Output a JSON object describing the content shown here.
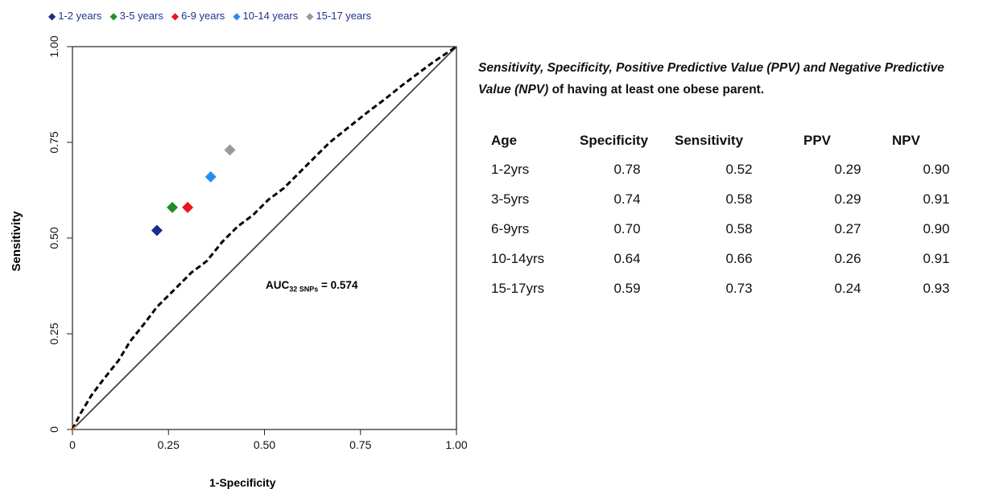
{
  "chart_data": {
    "type": "scatter",
    "xlabel": "1-Specificity",
    "ylabel": "Sensitivity",
    "xlim": [
      0,
      1
    ],
    "ylim": [
      0,
      1
    ],
    "xticks": [
      "0",
      "0.25",
      "0.50",
      "0.75",
      "1.00"
    ],
    "yticks": [
      "0",
      "0.25",
      "0.50",
      "0.75",
      "1.00"
    ],
    "grid": false,
    "legend_position": "top",
    "series": [
      {
        "name": "1-2 years",
        "color": "#1c2a8a",
        "marker": "diamond",
        "x": 0.22,
        "y": 0.52
      },
      {
        "name": "3-5 years",
        "color": "#1f8f2a",
        "marker": "diamond",
        "x": 0.26,
        "y": 0.58
      },
      {
        "name": "6-9 years",
        "color": "#e8141e",
        "marker": "diamond",
        "x": 0.3,
        "y": 0.58
      },
      {
        "name": "10-14 years",
        "color": "#2a8cf0",
        "marker": "diamond",
        "x": 0.36,
        "y": 0.66
      },
      {
        "name": "15-17 years",
        "color": "#9a9a9a",
        "marker": "diamond",
        "x": 0.41,
        "y": 0.73
      }
    ],
    "roc_curve": {
      "style": "dashed",
      "color": "#000000",
      "points": [
        [
          0,
          0
        ],
        [
          0.02,
          0.04
        ],
        [
          0.05,
          0.09
        ],
        [
          0.08,
          0.13
        ],
        [
          0.12,
          0.18
        ],
        [
          0.15,
          0.23
        ],
        [
          0.19,
          0.28
        ],
        [
          0.22,
          0.32
        ],
        [
          0.25,
          0.35
        ],
        [
          0.28,
          0.38
        ],
        [
          0.31,
          0.41
        ],
        [
          0.35,
          0.44
        ],
        [
          0.39,
          0.49
        ],
        [
          0.43,
          0.53
        ],
        [
          0.47,
          0.56
        ],
        [
          0.51,
          0.6
        ],
        [
          0.55,
          0.63
        ],
        [
          0.59,
          0.67
        ],
        [
          0.63,
          0.71
        ],
        [
          0.67,
          0.75
        ],
        [
          0.72,
          0.79
        ],
        [
          0.77,
          0.83
        ],
        [
          0.81,
          0.86
        ],
        [
          0.86,
          0.9
        ],
        [
          0.9,
          0.93
        ],
        [
          0.94,
          0.96
        ],
        [
          0.97,
          0.98
        ],
        [
          1,
          1
        ]
      ]
    },
    "reference_line": {
      "color": "#444444",
      "points": [
        [
          0,
          0
        ],
        [
          1,
          1
        ]
      ]
    },
    "annotation": {
      "prefix": "AUC",
      "subscript": "32 SNPs",
      "suffix": " = 0.574"
    }
  },
  "caption": {
    "italic_part": "Sensitivity, Specificity, Positive Predictive Value (PPV) and Negative Predictive Value (NPV)",
    "rest": " of having at least one obese parent."
  },
  "table": {
    "headers": [
      "Age",
      "Specificity",
      "Sensitivity",
      "PPV",
      "NPV"
    ],
    "rows": [
      [
        "1-2yrs",
        "0.78",
        "0.52",
        "0.29",
        "0.90"
      ],
      [
        "3-5yrs",
        "0.74",
        "0.58",
        "0.29",
        "0.91"
      ],
      [
        "6-9yrs",
        "0.70",
        "0.58",
        "0.27",
        "0.90"
      ],
      [
        "10-14yrs",
        "0.64",
        "0.66",
        "0.26",
        "0.91"
      ],
      [
        "15-17yrs",
        "0.59",
        "0.73",
        "0.24",
        "0.93"
      ]
    ]
  }
}
